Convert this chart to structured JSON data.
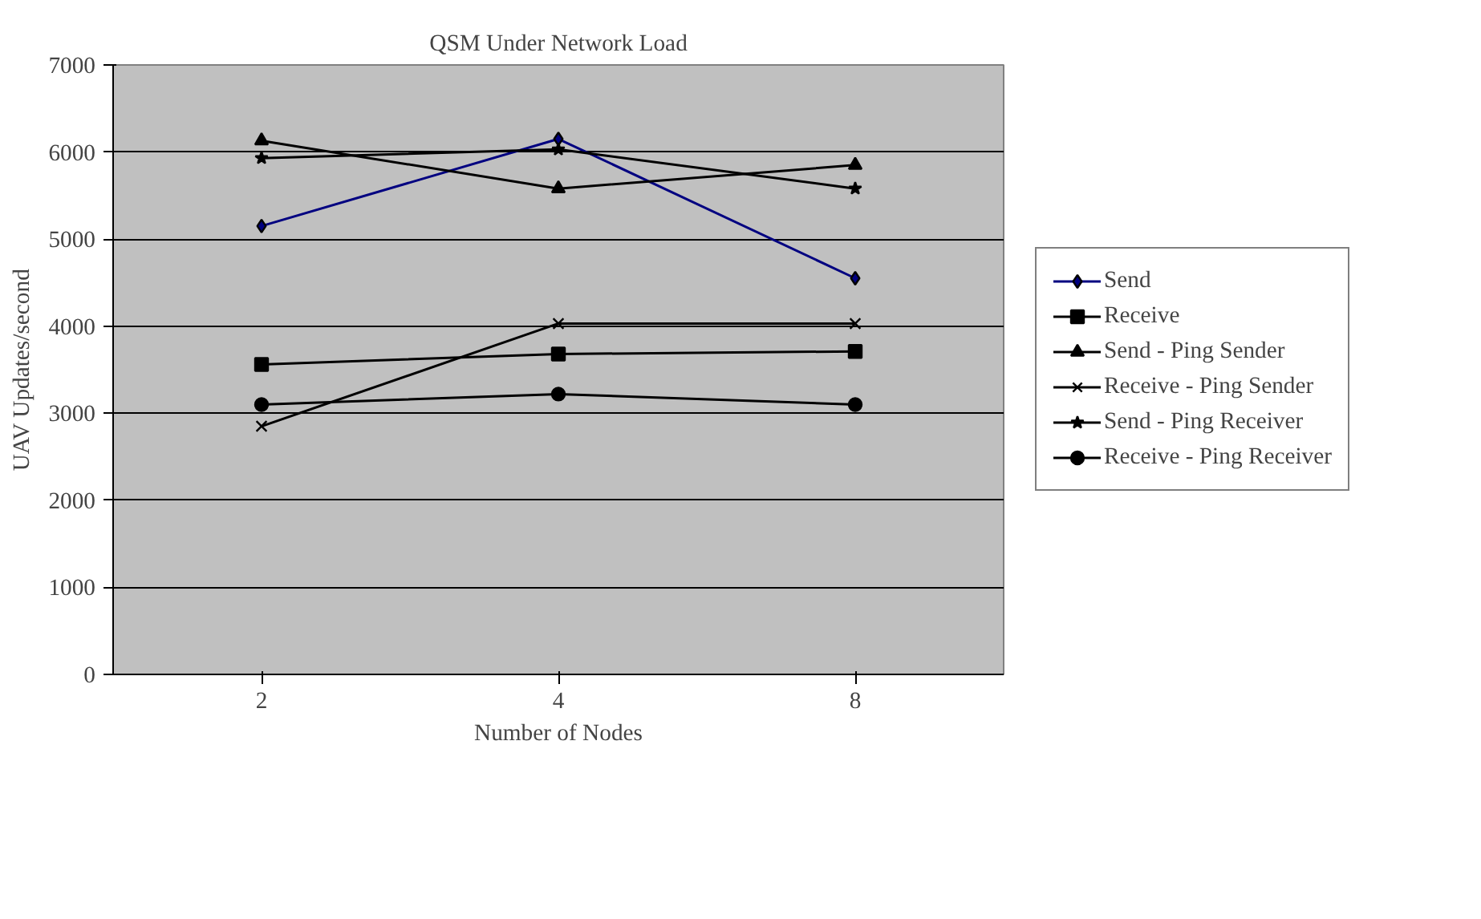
{
  "chart_data": {
    "type": "line",
    "title": "QSM Under Network Load",
    "xlabel": "Number of Nodes",
    "ylabel": "UAV Updates/second",
    "categories": [
      "2",
      "4",
      "8"
    ],
    "ylim": [
      0,
      7000
    ],
    "yticks": [
      0,
      1000,
      2000,
      3000,
      4000,
      5000,
      6000,
      7000
    ],
    "grid": "y",
    "legend": "right",
    "line_style": "solid",
    "series": [
      {
        "name": "Send",
        "color": "#000080",
        "marker": "diamond",
        "values": [
          5150,
          6150,
          4550
        ]
      },
      {
        "name": "Receive",
        "color": "#000000",
        "marker": "square",
        "values": [
          3560,
          3680,
          3710
        ]
      },
      {
        "name": "Send - Ping Sender",
        "color": "#000000",
        "marker": "triangle",
        "values": [
          6130,
          5580,
          5850
        ]
      },
      {
        "name": "Receive - Ping Sender",
        "color": "#000000",
        "marker": "cross",
        "values": [
          2850,
          4030,
          4030
        ]
      },
      {
        "name": "Send - Ping Receiver",
        "color": "#000000",
        "marker": "star",
        "values": [
          5930,
          6030,
          5580
        ]
      },
      {
        "name": "Receive - Ping Receiver",
        "color": "#000000",
        "marker": "circle",
        "values": [
          3100,
          3220,
          3100
        ]
      }
    ]
  }
}
